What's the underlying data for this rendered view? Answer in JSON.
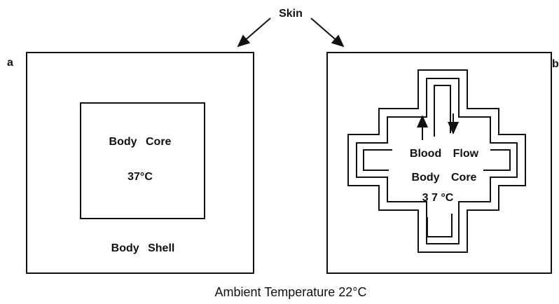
{
  "skin_label": "Skin",
  "panel_a": {
    "label": "a",
    "core": "Body Core",
    "core_temp": "37°C",
    "shell": "Body Shell"
  },
  "panel_b": {
    "label": "b",
    "flow": "Blood Flow",
    "core": "Body Core",
    "core_temp": "3 7 °C"
  },
  "ambient": "Ambient Temperature 22°C"
}
